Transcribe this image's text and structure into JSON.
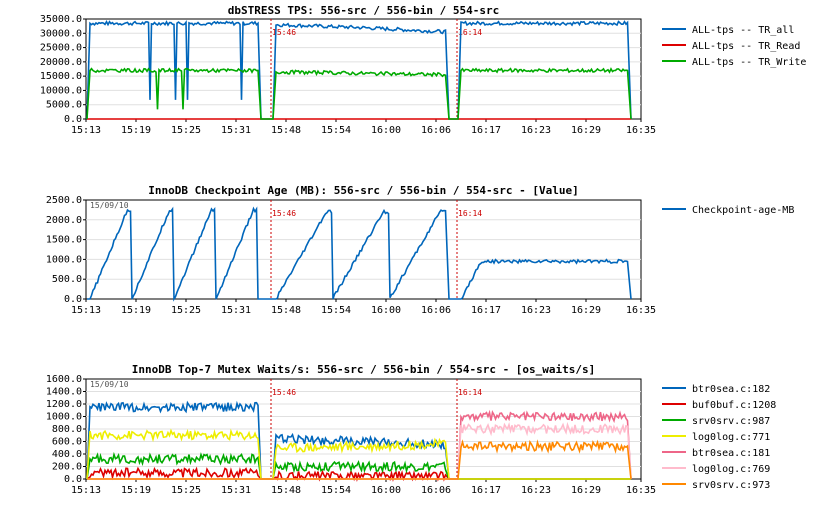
{
  "chart_data": [
    {
      "type": "line",
      "title": "dbSTRESS TPS: 556-src / 556-bin / 554-src",
      "date_label": "",
      "x_ticks": [
        "15:13",
        "15:19",
        "15:25",
        "15:31",
        "15:48",
        "15:54",
        "16:00",
        "16:06",
        "16:17",
        "16:23",
        "16:29",
        "16:35"
      ],
      "y_ticks": [
        "0.0",
        "5000.0",
        "10000.0",
        "15000.0",
        "20000.0",
        "25000.0",
        "30000.0",
        "35000.0"
      ],
      "ylim": [
        0,
        35000
      ],
      "markers": [
        {
          "label": "15:46"
        },
        {
          "label": "16:14"
        }
      ],
      "legend": "right",
      "series": [
        {
          "name": "ALL-tps -- TR_all",
          "color": "#0066bb",
          "segments": [
            [
              33500,
              33500,
              33500
            ],
            [
              33000,
              32000,
              30500
            ],
            [
              33500,
              33500,
              33500
            ]
          ]
        },
        {
          "name": "ALL-tps -- TR_Read",
          "color": "#dd0000",
          "segments": [
            [
              0,
              0,
              0
            ],
            [
              0,
              0,
              0
            ],
            [
              0,
              0,
              0
            ]
          ]
        },
        {
          "name": "ALL-tps -- TR_Write",
          "color": "#00aa00",
          "segments": [
            [
              17000,
              17000,
              17000
            ],
            [
              16500,
              16000,
              15500
            ],
            [
              17000,
              17000,
              17000
            ]
          ]
        }
      ]
    },
    {
      "type": "line",
      "title": "InnoDB Checkpoint Age (MB): 556-src / 556-bin / 554-src - [Value]",
      "date_label": "15/09/10",
      "x_ticks": [
        "15:13",
        "15:19",
        "15:25",
        "15:31",
        "15:48",
        "15:54",
        "16:00",
        "16:06",
        "16:17",
        "16:23",
        "16:29",
        "16:35"
      ],
      "y_ticks": [
        "0.0",
        "500.0",
        "1000.0",
        "1500.0",
        "2000.0",
        "2500.0"
      ],
      "ylim": [
        0,
        2500
      ],
      "markers": [
        {
          "label": "15:46"
        },
        {
          "label": "16:14"
        }
      ],
      "legend": "right",
      "series": [
        {
          "name": "Checkpoint-age-MB",
          "color": "#0066bb",
          "segments": [
            [
              2250,
              2250,
              2250
            ],
            [
              2200,
              2200,
              2200
            ],
            [
              950,
              950,
              950
            ]
          ]
        }
      ]
    },
    {
      "type": "line",
      "title": "InnoDB Top-7 Mutex Waits/s: 556-src / 556-bin / 554-src - [os_waits/s]",
      "date_label": "15/09/10",
      "x_ticks": [
        "15:13",
        "15:19",
        "15:25",
        "15:31",
        "15:48",
        "15:54",
        "16:00",
        "16:06",
        "16:17",
        "16:23",
        "16:29",
        "16:35"
      ],
      "y_ticks": [
        "0.0",
        "200.0",
        "400.0",
        "600.0",
        "800.0",
        "1000.0",
        "1200.0",
        "1400.0",
        "1600.0"
      ],
      "ylim": [
        0,
        1600
      ],
      "markers": [
        {
          "label": "15:46"
        },
        {
          "label": "16:14"
        }
      ],
      "legend": "right",
      "series": [
        {
          "name": "btr0sea.c:182",
          "color": "#0066bb",
          "segments": [
            [
              1150,
              1150,
              1150
            ],
            [
              650,
              600,
              550
            ],
            [
              0,
              0,
              0
            ]
          ]
        },
        {
          "name": "buf0buf.c:1208",
          "color": "#dd0000",
          "segments": [
            [
              100,
              100,
              100
            ],
            [
              50,
              50,
              50
            ],
            [
              0,
              0,
              0
            ]
          ]
        },
        {
          "name": "srv0srv.c:987",
          "color": "#00aa00",
          "segments": [
            [
              320,
              320,
              320
            ],
            [
              200,
              200,
              200
            ],
            [
              0,
              0,
              0
            ]
          ]
        },
        {
          "name": "log0log.c:771",
          "color": "#eeee00",
          "segments": [
            [
              700,
              700,
              700
            ],
            [
              500,
              520,
              560
            ],
            [
              0,
              0,
              0
            ]
          ]
        },
        {
          "name": "btr0sea.c:181",
          "color": "#ee6688",
          "segments": [
            [
              0,
              0,
              0
            ],
            [
              0,
              0,
              0
            ],
            [
              1000,
              1000,
              1000
            ]
          ]
        },
        {
          "name": "log0log.c:769",
          "color": "#ffbbcc",
          "segments": [
            [
              0,
              0,
              0
            ],
            [
              0,
              0,
              0
            ],
            [
              800,
              800,
              800
            ]
          ]
        },
        {
          "name": "srv0srv.c:973",
          "color": "#ff8800",
          "segments": [
            [
              0,
              0,
              0
            ],
            [
              0,
              0,
              0
            ],
            [
              520,
              520,
              520
            ]
          ]
        }
      ]
    }
  ]
}
